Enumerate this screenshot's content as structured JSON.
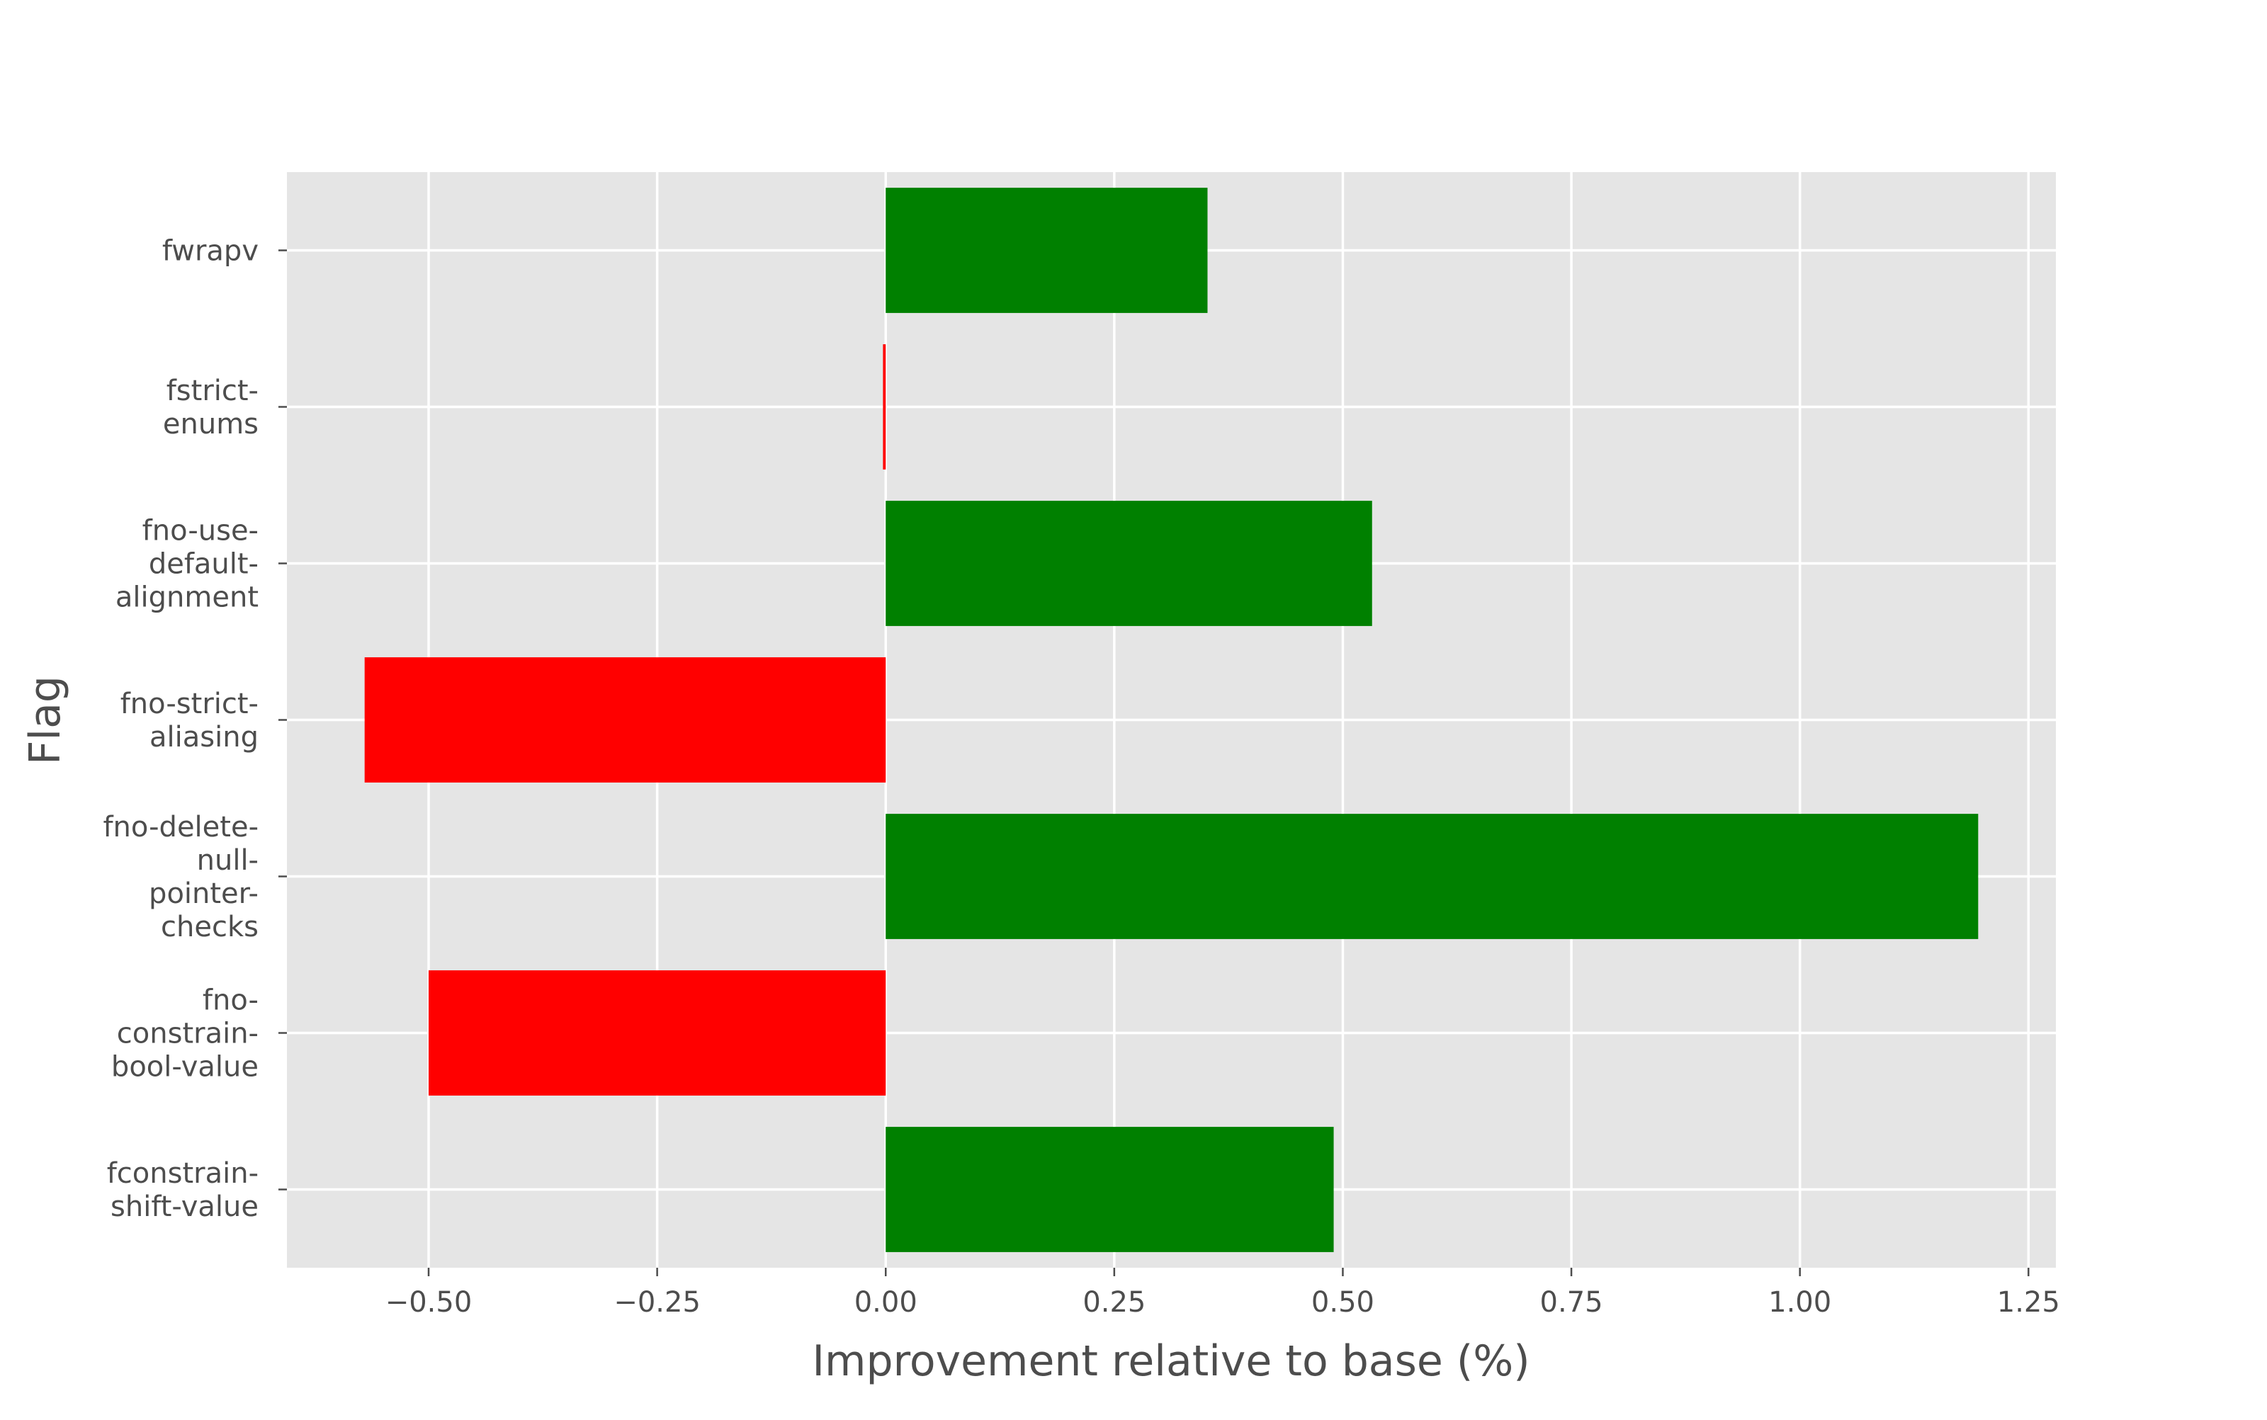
{
  "chart_data": {
    "type": "bar",
    "orientation": "horizontal",
    "title": "",
    "xlabel": "Improvement relative to base (%)",
    "ylabel": "Flag",
    "categories": [
      "fconstrain-shift-value",
      "fno-constrain-bool-value",
      "fno-delete-null-pointer-checks",
      "fno-strict-aliasing",
      "fno-use-default-alignment",
      "fstrict-enums",
      "fwrapv"
    ],
    "category_label_lines": [
      [
        "fconstrain-",
        "shift-value"
      ],
      [
        "fno-",
        "constrain-",
        "bool-value"
      ],
      [
        "fno-delete-",
        "null-",
        "pointer-",
        "checks"
      ],
      [
        "fno-strict-",
        "aliasing"
      ],
      [
        "fno-use-",
        "default-",
        "alignment"
      ],
      [
        "fstrict-",
        "enums"
      ],
      [
        "fwrapv"
      ]
    ],
    "values": [
      0.49,
      -0.5,
      1.195,
      -0.57,
      0.532,
      -0.003,
      0.352
    ],
    "xlim": [
      -0.655,
      1.28
    ],
    "xticks": [
      -0.5,
      -0.25,
      0.0,
      0.25,
      0.5,
      0.75,
      1.0,
      1.25
    ],
    "xtick_labels": [
      "−0.50",
      "−0.25",
      "0.00",
      "0.25",
      "0.50",
      "0.75",
      "1.00",
      "1.25"
    ],
    "grid": true,
    "legend": false,
    "colors": {
      "positive": "#008000",
      "negative": "#ff0000",
      "plot_background": "#e5e5e5",
      "grid": "#ffffff",
      "text": "#4d4d4d"
    }
  }
}
